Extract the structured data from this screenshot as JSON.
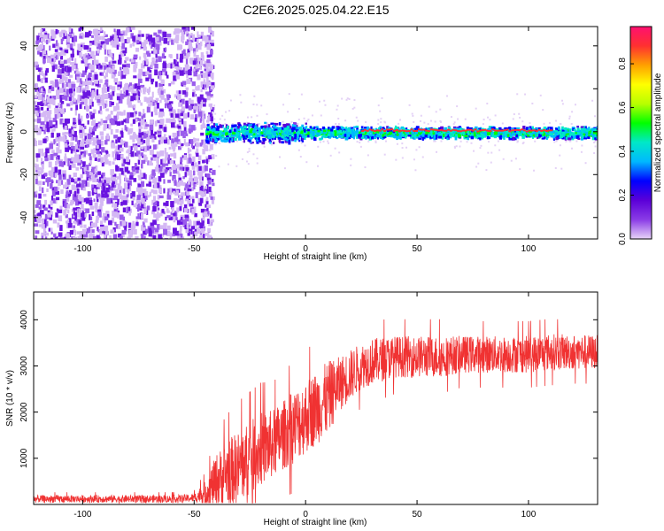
{
  "figure_title": "C2E6.2025.025.04.22.E15",
  "chart_data": [
    {
      "type": "heatmap",
      "title": "",
      "xlabel": "Height of straight line (km)",
      "ylabel": "Frequency (Hz)",
      "xlim": [
        -122,
        131
      ],
      "ylim": [
        -50,
        49
      ],
      "xticks": [
        -100,
        -50,
        0,
        50,
        100
      ],
      "yticks": [
        -40,
        -20,
        0,
        20,
        40
      ],
      "colorbar": {
        "label": "Normalized spectral amplitude",
        "range": [
          0,
          0.97
        ],
        "ticks": [
          0,
          0.2,
          0.4,
          0.6,
          0.8
        ],
        "tick_labels": [
          "0.0",
          "0.2",
          "0.4",
          "0.6",
          "0.8"
        ],
        "colormap": [
          "#e8d4f8",
          "#8a3ce6",
          "#5b00d8",
          "#0000ff",
          "#00b8ff",
          "#00e8c8",
          "#00ff00",
          "#b8ff00",
          "#ffff00",
          "#ffa000",
          "#ff3030",
          "#ff1070"
        ]
      },
      "regions": [
        {
          "x_range": [
            -122,
            -42
          ],
          "freq_range": [
            -50,
            49
          ],
          "amplitude": 0.12
        },
        {
          "x_range": [
            -45,
            131
          ],
          "freq_range": [
            -3,
            3
          ],
          "amplitude": 0.35
        },
        {
          "x_range": [
            25,
            110
          ],
          "freq_range": [
            0.5,
            1.5
          ],
          "amplitude": 0.9
        }
      ],
      "grid": false
    },
    {
      "type": "line",
      "title": "",
      "xlabel": "Height of straight line (km)",
      "ylabel": "SNR (10 * v/v)",
      "xlim": [
        -122,
        131
      ],
      "ylim": [
        0,
        4600
      ],
      "xticks": [
        -100,
        -50,
        0,
        50,
        100
      ],
      "yticks": [
        1000,
        2000,
        3000,
        4000
      ],
      "series_color": "#f03232",
      "envelope": {
        "x": [
          -122,
          -100,
          -80,
          -60,
          -50,
          -45,
          -40,
          -35,
          -30,
          -25,
          -20,
          -15,
          -10,
          -5,
          0,
          5,
          10,
          15,
          20,
          25,
          30,
          40,
          50,
          60,
          70,
          80,
          90,
          100,
          110,
          120,
          131
        ],
        "mean": [
          120,
          120,
          120,
          120,
          140,
          250,
          500,
          700,
          800,
          1000,
          1200,
          1300,
          1500,
          1700,
          1900,
          2100,
          2300,
          2600,
          2800,
          3000,
          3100,
          3200,
          3200,
          3200,
          3250,
          3250,
          3250,
          3250,
          3300,
          3300,
          3300
        ],
        "spread": [
          80,
          80,
          80,
          80,
          90,
          250,
          600,
          700,
          800,
          800,
          800,
          750,
          750,
          800,
          800,
          800,
          800,
          600,
          550,
          500,
          500,
          450,
          450,
          450,
          400,
          400,
          400,
          400,
          400,
          380,
          380
        ]
      },
      "grid": false
    }
  ]
}
